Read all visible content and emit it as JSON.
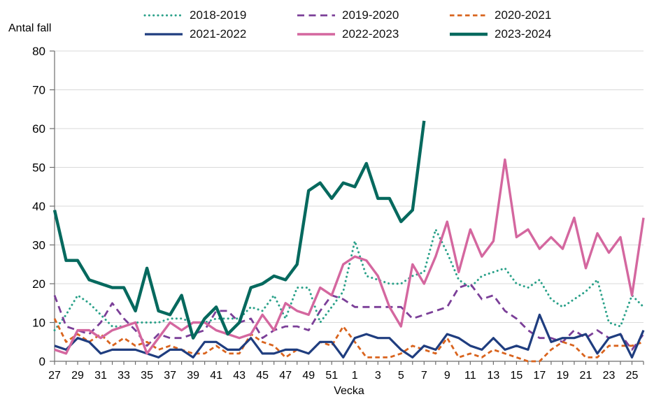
{
  "chart_data": {
    "type": "line",
    "title": "",
    "ylabel": "Antal fall",
    "xlabel": "Vecka",
    "ylim": [
      0,
      80
    ],
    "ytick_step": 10,
    "grid": "horizontal-only",
    "legend_position": "top-center",
    "axis_color": "#6e6e6e",
    "grid_color": "#d9d9d9",
    "text_color": "#000000",
    "xtick_label_every": 2,
    "categories": [
      27,
      28,
      29,
      30,
      31,
      32,
      33,
      34,
      35,
      36,
      37,
      38,
      39,
      40,
      41,
      42,
      43,
      44,
      45,
      46,
      47,
      48,
      49,
      50,
      51,
      52,
      1,
      2,
      3,
      4,
      5,
      6,
      7,
      8,
      9,
      10,
      11,
      12,
      13,
      14,
      15,
      16,
      17,
      18,
      19,
      20,
      21,
      22,
      23,
      24,
      25,
      26
    ],
    "series": [
      {
        "name": "2018-2019",
        "color": "#2aa189",
        "style": "dotted",
        "width": 3,
        "values": [
          8,
          12,
          17,
          15,
          12,
          9,
          9,
          10,
          10,
          10,
          11,
          11,
          10,
          10,
          11,
          11,
          11,
          14,
          13,
          17,
          11,
          19,
          19,
          10,
          14,
          18,
          31,
          22,
          21,
          20,
          20,
          22,
          23,
          34,
          28,
          21,
          19,
          22,
          23,
          24,
          20,
          19,
          21,
          16,
          14,
          16,
          18,
          21,
          10,
          9,
          17,
          14
        ]
      },
      {
        "name": "2019-2020",
        "color": "#7b3f98",
        "style": "dashed",
        "width": 2.8,
        "values": [
          17,
          9,
          8,
          7,
          10,
          15,
          11,
          8,
          4,
          7,
          6,
          6,
          7,
          8,
          13,
          13,
          10,
          11,
          6,
          8,
          9,
          9,
          8,
          13,
          17,
          16,
          14,
          14,
          14,
          14,
          14,
          11,
          12,
          13,
          14,
          19,
          20,
          16,
          17,
          13,
          11,
          8,
          6,
          6,
          5,
          8,
          6,
          8,
          6,
          7,
          3,
          7
        ]
      },
      {
        "name": "2020-2021",
        "color": "#d9641e",
        "style": "dashed-short",
        "width": 2.8,
        "values": [
          11,
          5,
          7,
          5,
          7,
          4,
          6,
          4,
          5,
          3,
          4,
          3,
          2,
          2,
          4,
          2,
          2,
          7,
          5,
          4,
          1,
          3,
          2,
          5,
          4,
          9,
          5,
          1,
          1,
          1,
          2,
          4,
          3,
          2,
          6,
          1,
          2,
          1,
          3,
          2,
          1,
          0,
          0,
          3,
          5,
          4,
          1,
          1,
          4,
          4,
          4,
          5
        ]
      },
      {
        "name": "2021-2022",
        "color": "#1f3d7f",
        "style": "solid",
        "width": 3.2,
        "values": [
          4,
          3,
          6,
          5,
          2,
          3,
          3,
          3,
          2,
          1,
          3,
          3,
          1,
          5,
          5,
          3,
          3,
          6,
          2,
          2,
          3,
          3,
          2,
          5,
          5,
          1,
          6,
          7,
          6,
          6,
          3,
          1,
          4,
          3,
          7,
          6,
          4,
          3,
          6,
          3,
          4,
          3,
          12,
          5,
          6,
          6,
          7,
          2,
          6,
          7,
          1,
          8
        ]
      },
      {
        "name": "2022-2023",
        "color": "#d4679f",
        "style": "solid",
        "width": 3.4,
        "values": [
          3,
          2,
          8,
          8,
          6,
          8,
          9,
          10,
          2,
          6,
          10,
          8,
          10,
          10,
          8,
          7,
          6,
          7,
          12,
          8,
          15,
          13,
          12,
          19,
          17,
          25,
          27,
          26,
          22,
          14,
          9,
          25,
          20,
          27,
          36,
          23,
          34,
          27,
          31,
          52,
          32,
          34,
          29,
          32,
          29,
          37,
          24,
          33,
          28,
          32,
          17,
          37
        ]
      },
      {
        "name": "2023-2024",
        "color": "#06695e",
        "style": "solid",
        "width": 4.4,
        "values": [
          39,
          26,
          26,
          21,
          20,
          19,
          19,
          13,
          24,
          13,
          12,
          17,
          6,
          11,
          14,
          7,
          10,
          19,
          20,
          22,
          21,
          25,
          44,
          46,
          42,
          46,
          45,
          51,
          42,
          42,
          36,
          39,
          62
        ]
      }
    ]
  }
}
